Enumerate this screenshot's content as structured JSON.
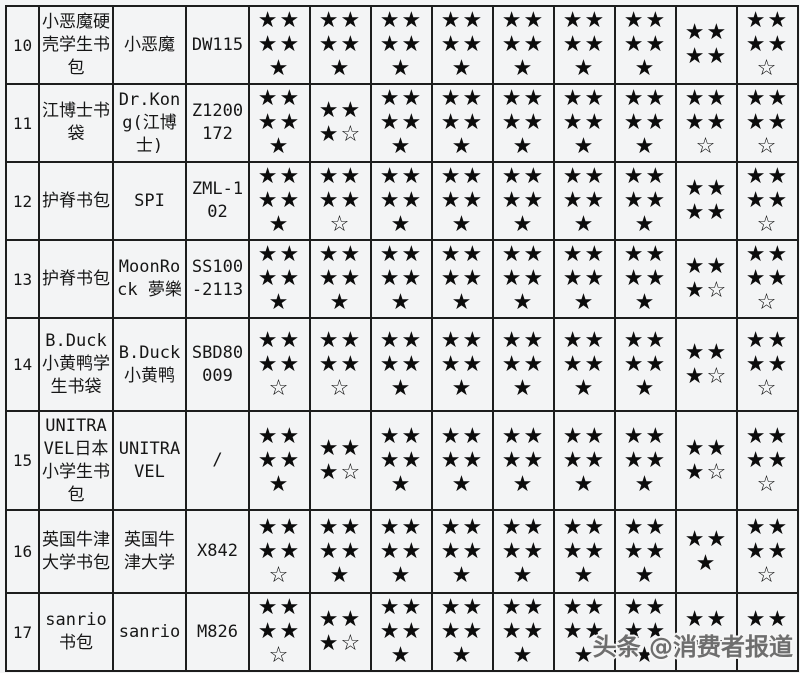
{
  "page": {
    "background_color": "#f3f4f5",
    "border_color": "#1d1d1d",
    "star_color": "#0c0c0c",
    "filled_star_glyph": "★",
    "outline_star_glyph": "☆"
  },
  "watermark": {
    "text": "头条 @消费者报道"
  },
  "table": {
    "rows": [
      {
        "no": "10",
        "name": "小恶魔硬壳学生书包",
        "brand": "小恶魔",
        "model": "DW115",
        "ratings": [
          [
            "★★",
            "★★",
            "★"
          ],
          [
            "★★",
            "★★",
            "★"
          ],
          [
            "★★",
            "★★",
            "★"
          ],
          [
            "★★",
            "★★",
            "★"
          ],
          [
            "★★",
            "★★",
            "★"
          ],
          [
            "★★",
            "★★",
            "★"
          ],
          [
            "★★",
            "★★",
            "★"
          ],
          [
            "★★",
            "★★"
          ],
          [
            "★★",
            "★★",
            "☆"
          ]
        ]
      },
      {
        "no": "11",
        "name": "江博士书袋",
        "brand": "Dr.Kong(江博士)",
        "model": "Z1200172",
        "ratings": [
          [
            "★★",
            "★★",
            "★"
          ],
          [
            "★★",
            "★☆"
          ],
          [
            "★★",
            "★★",
            "★"
          ],
          [
            "★★",
            "★★",
            "★"
          ],
          [
            "★★",
            "★★",
            "★"
          ],
          [
            "★★",
            "★★",
            "★"
          ],
          [
            "★★",
            "★★",
            "★"
          ],
          [
            "★★",
            "★★",
            "☆"
          ],
          [
            "★★",
            "★★",
            "☆"
          ]
        ]
      },
      {
        "no": "12",
        "name": "护脊书包",
        "brand": "SPI",
        "model": "ZML-102",
        "ratings": [
          [
            "★★",
            "★★",
            "★"
          ],
          [
            "★★",
            "★★",
            "☆"
          ],
          [
            "★★",
            "★★",
            "★"
          ],
          [
            "★★",
            "★★",
            "★"
          ],
          [
            "★★",
            "★★",
            "★"
          ],
          [
            "★★",
            "★★",
            "★"
          ],
          [
            "★★",
            "★★",
            "★"
          ],
          [
            "★★",
            "★★"
          ],
          [
            "★★",
            "★★",
            "☆"
          ]
        ]
      },
      {
        "no": "13",
        "name": "护脊书包",
        "brand": "MoonRock 夢樂",
        "model": "SS100-2113",
        "ratings": [
          [
            "★★",
            "★★",
            "★"
          ],
          [
            "★★",
            "★★",
            "★"
          ],
          [
            "★★",
            "★★",
            "★"
          ],
          [
            "★★",
            "★★",
            "★"
          ],
          [
            "★★",
            "★★",
            "★"
          ],
          [
            "★★",
            "★★",
            "★"
          ],
          [
            "★★",
            "★★",
            "★"
          ],
          [
            "★★",
            "★☆"
          ],
          [
            "★★",
            "★★",
            "☆"
          ]
        ]
      },
      {
        "no": "14",
        "name": "B.Duck小黄鸭学生书袋",
        "brand": "B.Duck 小黄鸭",
        "model": "SBD80009",
        "ratings": [
          [
            "★★",
            "★★",
            "☆"
          ],
          [
            "★★",
            "★★",
            "☆"
          ],
          [
            "★★",
            "★★",
            "★"
          ],
          [
            "★★",
            "★★",
            "★"
          ],
          [
            "★★",
            "★★",
            "★"
          ],
          [
            "★★",
            "★★",
            "★"
          ],
          [
            "★★",
            "★★",
            "★"
          ],
          [
            "★★",
            "★☆"
          ],
          [
            "★★",
            "★★",
            "☆"
          ]
        ]
      },
      {
        "no": "15",
        "name": "UNITRAVEL日本小学生书包",
        "brand": "UNITRAVEL",
        "model": "/",
        "ratings": [
          [
            "★★",
            "★★",
            "★"
          ],
          [
            "★★",
            "★☆"
          ],
          [
            "★★",
            "★★",
            "★"
          ],
          [
            "★★",
            "★★",
            "★"
          ],
          [
            "★★",
            "★★",
            "★"
          ],
          [
            "★★",
            "★★",
            "★"
          ],
          [
            "★★",
            "★★",
            "★"
          ],
          [
            "★★",
            "★☆"
          ],
          [
            "★★",
            "★★",
            "☆"
          ]
        ]
      },
      {
        "no": "16",
        "name": "英国牛津大学书包",
        "brand": "英国牛津大学",
        "model": "X842",
        "ratings": [
          [
            "★★",
            "★★",
            "☆"
          ],
          [
            "★★",
            "★★",
            "★"
          ],
          [
            "★★",
            "★★",
            "★"
          ],
          [
            "★★",
            "★★",
            "★"
          ],
          [
            "★★",
            "★★",
            "★"
          ],
          [
            "★★",
            "★★",
            "★"
          ],
          [
            "★★",
            "★★",
            "★"
          ],
          [
            "★★",
            "★"
          ],
          [
            "★★",
            "★★",
            "☆"
          ]
        ]
      },
      {
        "no": "17",
        "name": "sanrio书包",
        "brand": "sanrio",
        "model": "M826",
        "ratings": [
          [
            "★★",
            "★★",
            "☆"
          ],
          [
            "★★",
            "★☆"
          ],
          [
            "★★",
            "★★",
            "★"
          ],
          [
            "★★",
            "★★",
            "★"
          ],
          [
            "★★",
            "★★",
            "★"
          ],
          [
            "★★",
            "★★",
            "★"
          ],
          [
            "★★",
            "★★",
            "★"
          ],
          [
            "★★",
            "★★"
          ],
          [
            "★★",
            "★★"
          ]
        ]
      }
    ]
  }
}
